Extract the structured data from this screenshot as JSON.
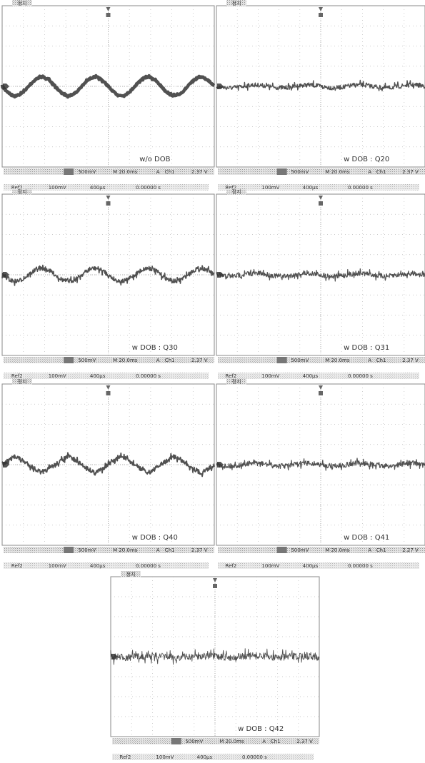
{
  "panels": [
    {
      "state": "정지",
      "caption": "w/o DOB",
      "status": {
        "ch": "500mV",
        "time": "M 20.0ms",
        "trig": "A",
        "src": "Ch1",
        "level": "2.37 V"
      },
      "ref": {
        "name": "Ref2",
        "scale": "100mV",
        "time": "400µs",
        "pos": "0.00000 s"
      }
    },
    {
      "state": "정지",
      "caption": "w DOB : Q20",
      "status": {
        "ch": "500mV",
        "time": "M 20.0ms",
        "trig": "A",
        "src": "Ch1",
        "level": "2.37 V"
      },
      "ref": {
        "name": "Ref2",
        "scale": "100mV",
        "time": "400µs",
        "pos": "0.00000 s"
      }
    },
    {
      "state": "정지",
      "caption": "w DOB : Q30",
      "status": {
        "ch": "500mV",
        "time": "M 20.0ms",
        "trig": "A",
        "src": "Ch1",
        "level": "2.37 V"
      },
      "ref": {
        "name": "Ref2",
        "scale": "100mV",
        "time": "400µs",
        "pos": "0.00000 s"
      }
    },
    {
      "state": "정지",
      "caption": "w DOB : Q31",
      "status": {
        "ch": "500mV",
        "time": "M 20.0ms",
        "trig": "A",
        "src": "Ch1",
        "level": "2.37 V"
      },
      "ref": {
        "name": "Ref2",
        "scale": "100mV",
        "time": "400µs",
        "pos": "0.00000 s"
      }
    },
    {
      "state": "정지",
      "caption": "w DOB : Q40",
      "status": {
        "ch": "500mV",
        "time": "M 20.0ms",
        "trig": "A",
        "src": "Ch1",
        "level": "2.37 V"
      },
      "ref": {
        "name": "Ref2",
        "scale": "100mV",
        "time": "400µs",
        "pos": "0.00000 s"
      }
    },
    {
      "state": "정지",
      "caption": "w DOB : Q41",
      "status": {
        "ch": "500mV",
        "time": "M 20.0ms",
        "trig": "A",
        "src": "Ch1",
        "level": "2.27 V"
      },
      "ref": {
        "name": "Ref2",
        "scale": "100mV",
        "time": "400µs",
        "pos": "0.00000 s"
      }
    },
    {
      "state": "정지",
      "caption": "w DOB : Q42",
      "status": {
        "ch": "500mV",
        "time": "M 20.0ms",
        "trig": "A",
        "src": "Ch1",
        "level": "2.37 V"
      },
      "ref": {
        "name": "Ref2",
        "scale": "100mV",
        "time": "400µs",
        "pos": "0.00000 s"
      }
    }
  ]
}
